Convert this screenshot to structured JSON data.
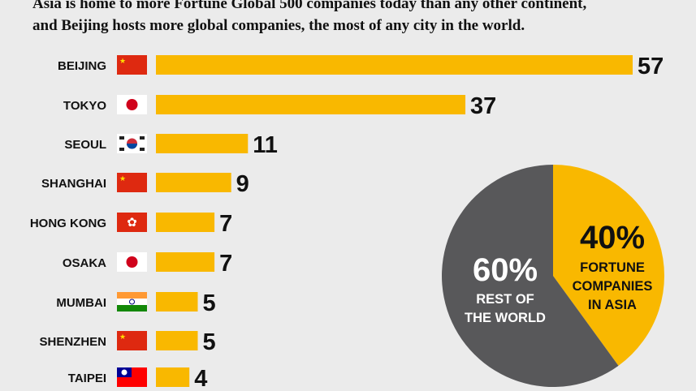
{
  "intro": {
    "line1": "Asia is home to more Fortune Global 500 companies today than any other continent,",
    "line2": "and Beijing hosts more global companies, the most of any city in the world."
  },
  "colors": {
    "bar": "#f9b800",
    "pie_asia": "#f9b800",
    "pie_rest": "#58585a",
    "background": "#ebebeb"
  },
  "chart_data": [
    {
      "type": "bar",
      "orientation": "horizontal",
      "categories": [
        "BEIJING",
        "TOKYO",
        "SEOUL",
        "SHANGHAI",
        "HONG KONG",
        "OSAKA",
        "MUMBAI",
        "SHENZHEN",
        "TAIPEI"
      ],
      "flags": [
        "china",
        "japan",
        "south-korea",
        "china",
        "hong-kong",
        "japan",
        "india",
        "china",
        "taiwan"
      ],
      "values": [
        57,
        37,
        11,
        9,
        7,
        7,
        5,
        5,
        4
      ],
      "data_labels": [
        "57",
        "37",
        "11",
        "9",
        "7",
        "7",
        "5",
        "5",
        "4"
      ]
    },
    {
      "type": "pie",
      "slices": [
        {
          "pct_label": "40%",
          "label_lines": [
            "FORTUNE",
            "COMPANIES",
            "IN ASIA"
          ],
          "value": 40,
          "color": "#f9b800"
        },
        {
          "pct_label": "60%",
          "label_lines": [
            "REST OF",
            "THE WORLD"
          ],
          "value": 60,
          "color": "#58585a"
        }
      ]
    }
  ]
}
